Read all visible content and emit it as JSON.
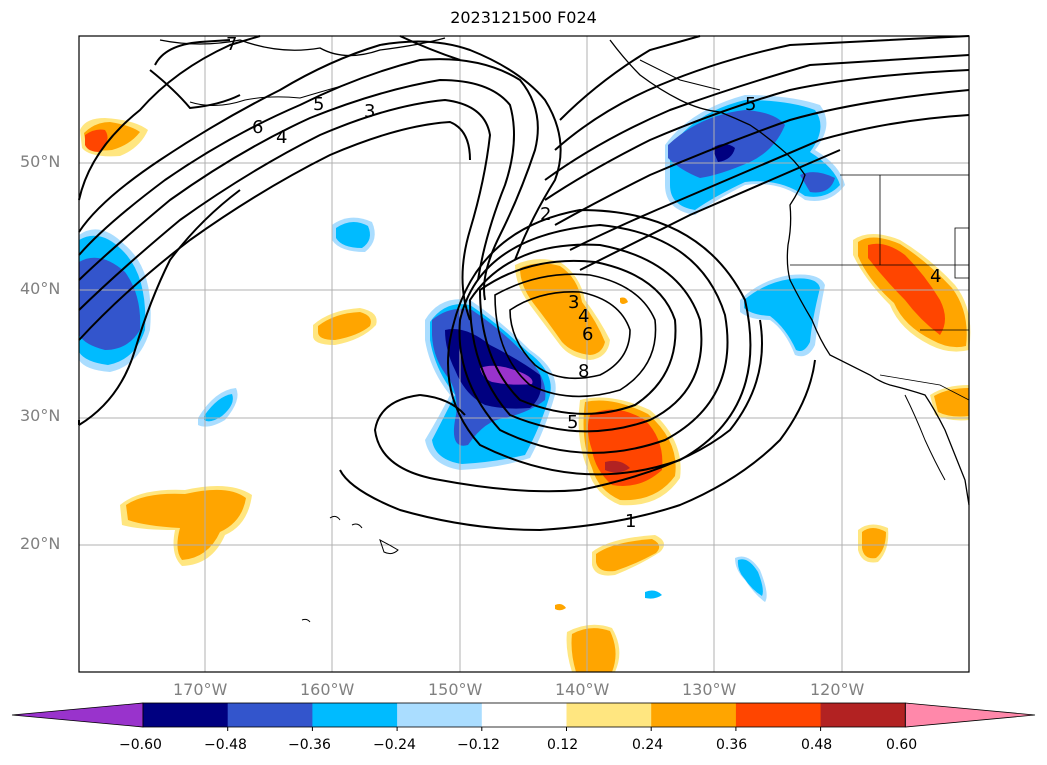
{
  "title": "2023121500 F024",
  "lat_labels": [
    "50°N",
    "40°N",
    "30°N",
    "20°N"
  ],
  "lon_labels": [
    "170°W",
    "160°W",
    "150°W",
    "140°W",
    "130°W",
    "120°W"
  ],
  "contour_labels": [
    "7",
    "6",
    "5",
    "4",
    "3",
    "2",
    "3",
    "4",
    "6",
    "8",
    "5",
    "1",
    "5",
    "4"
  ],
  "colorbar": {
    "ticks": [
      "−0.60",
      "−0.48",
      "−0.36",
      "−0.24",
      "−0.12",
      "0.12",
      "0.24",
      "0.36",
      "0.48",
      "0.60"
    ],
    "colors": [
      "#9933cc",
      "#000080",
      "#3355cc",
      "#00bbff",
      "#aaddff",
      "#ffffff",
      "#ffe680",
      "#ffa500",
      "#ff4500",
      "#b22222",
      "#ff88aa"
    ]
  },
  "colors": {
    "land_line": "#000000",
    "grid": "#b0b0b0"
  }
}
